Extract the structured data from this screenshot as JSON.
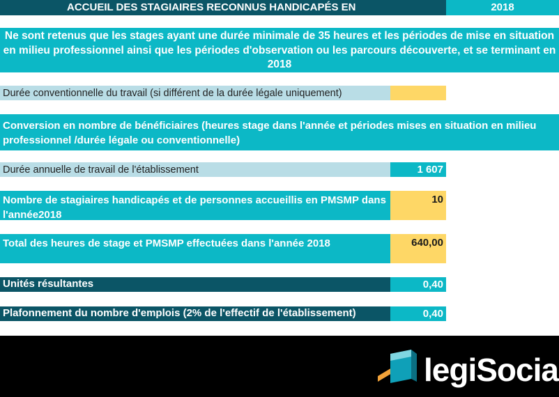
{
  "header": {
    "title": "ACCUEIL DES STAGIAIRES RECONNUS HANDICAPÉS EN",
    "year": "2018"
  },
  "intro": "Ne sont retenus que les stages ayant une durée minimale de 35 heures et les périodes de mise en situation en milieu professionnel ainsi que les périodes d'observation ou les parcours découverte, et se terminant en 2018",
  "duree_conventionnelle": {
    "label": "Durée conventionnelle du travail (si différent de la durée légale uniquement)",
    "value": ""
  },
  "conversion": "Conversion en nombre de bénéficiaires (heures stage dans l'année et périodes mises en situation en milieu professionnel /durée légale ou conventionnelle)",
  "duree_annuelle": {
    "label": "Durée annuelle de travail de l'établissement",
    "value": "1 607"
  },
  "nombre_stagiaires": {
    "label": "Nombre de stagiaires handicapés et de personnes accueillis en PMSMP dans l'année2018",
    "value": "10"
  },
  "total_heures": {
    "label": "Total des heures de stage et PMSMP effectuées dans l'année 2018",
    "value": "640,00"
  },
  "unites": {
    "label": "Unités résultantes",
    "value": "0,40"
  },
  "plafonnement": {
    "label": "Plafonnement du nombre d'emplois (2% de l'effectif de l'établissement)",
    "value": "0,40"
  },
  "logo": {
    "part1": "legi",
    "part2": "Social"
  },
  "colors": {
    "teal": "#0cb8c6",
    "dark_teal": "#0b5566",
    "light_blue": "#b9dde6",
    "yellow": "#fed766"
  }
}
